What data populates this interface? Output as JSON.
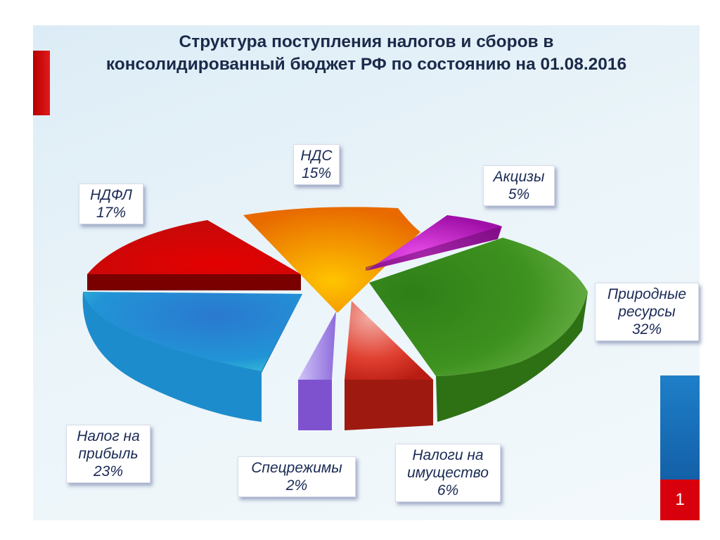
{
  "slide": {
    "title_line1": "Структура поступления налогов и сборов в",
    "title_line2": "консолидированный бюджет РФ по состоянию на 01.08.2016",
    "page_number": "1"
  },
  "chart_data": {
    "type": "pie",
    "title": "Структура поступления налогов и сборов в консолидированный бюджет РФ по состоянию на 01.08.2016",
    "unit": "%",
    "slices": [
      {
        "label": "НДС",
        "value": 15,
        "value_label": "15%",
        "color": "#f28a00"
      },
      {
        "label": "Акцизы",
        "value": 5,
        "value_label": "5%",
        "color": "#c21fc2"
      },
      {
        "label": "Природные ресурсы",
        "value": 32,
        "value_label": "32%",
        "color": "#3f8f1e"
      },
      {
        "label": "Налоги на имущество",
        "value": 6,
        "value_label": "6%",
        "color": "#d9281c"
      },
      {
        "label": "Спецрежимы",
        "value": 2,
        "value_label": "2%",
        "color": "#9a78e0"
      },
      {
        "label": "Налог на прибыль",
        "value": 23,
        "value_label": "23%",
        "color": "#1e88d2"
      },
      {
        "label": "НДФЛ",
        "value": 17,
        "value_label": "17%",
        "color": "#d81010"
      }
    ]
  },
  "labels": {
    "nds": {
      "line1": "НДС",
      "line2": "15%"
    },
    "akcizy": {
      "line1": "Акцизы",
      "line2": "5%"
    },
    "prirodnye": {
      "line1": "Природные",
      "line2": "ресурсы",
      "line3": "32%"
    },
    "imushestvo": {
      "line1": "Налоги на",
      "line2": "имущество",
      "line3": "6%"
    },
    "specrezhimy": {
      "line1": "Спецрежимы",
      "line2": "2%"
    },
    "pribyl": {
      "line1": "Налог на",
      "line2": "прибыль",
      "line3": "23%"
    },
    "ndfl": {
      "line1": "НДФЛ",
      "line2": "17%"
    }
  }
}
